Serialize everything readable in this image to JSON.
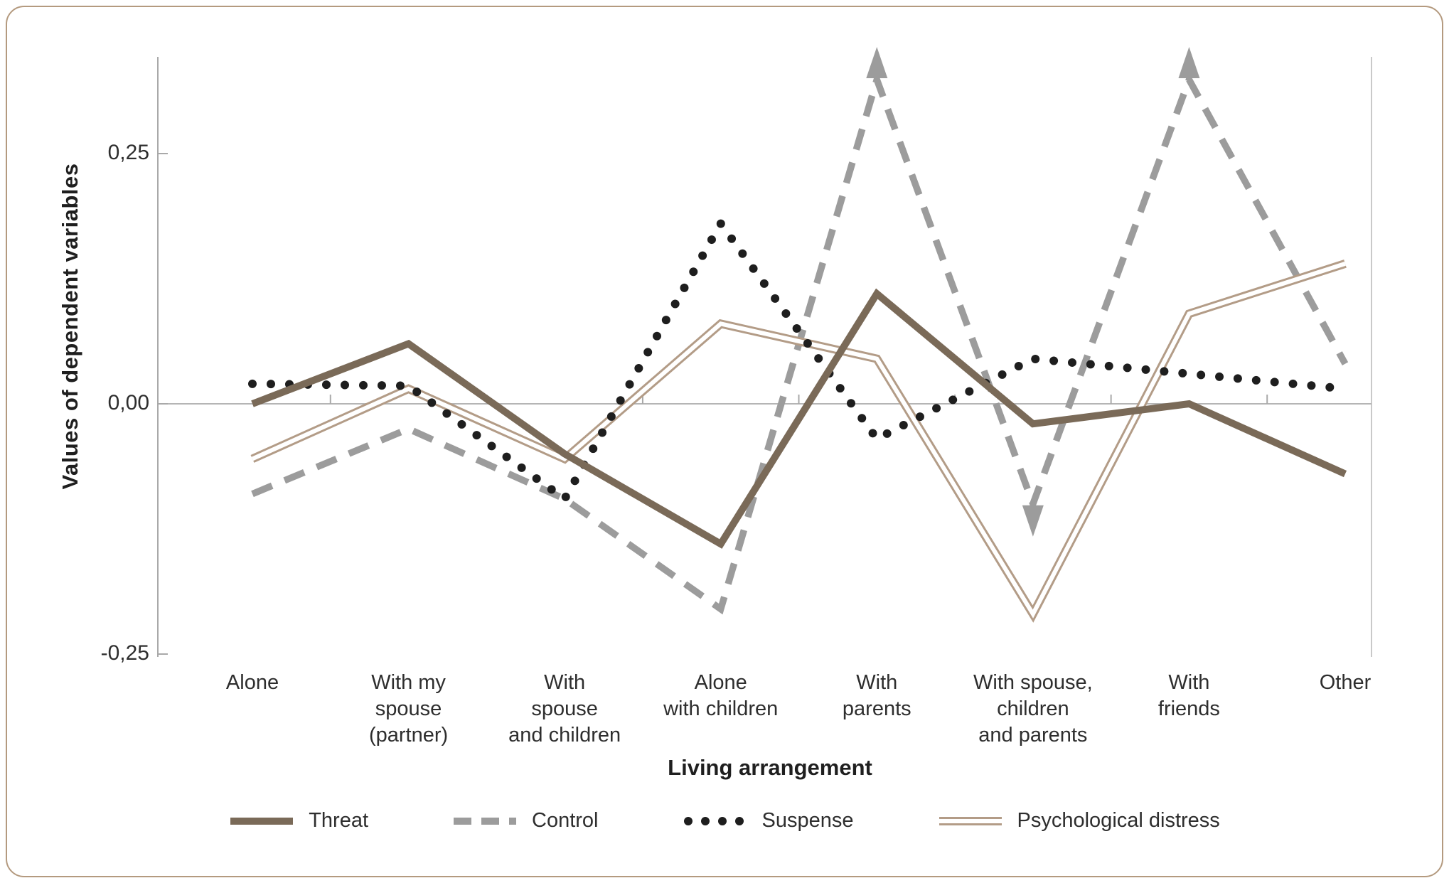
{
  "figure": {
    "border_color": "#b49a7f",
    "background": "#ffffff"
  },
  "axis_colors": {
    "axis_line": "#a9a9a9",
    "zero_line": "#b5b5b5",
    "tick": "#a9a9a9",
    "right_frame": "#c9c9c9"
  },
  "chart_data": {
    "type": "line",
    "x_label": "Living arrangement",
    "y_label": "Values of dependent variables",
    "y_ticks": [
      {
        "label": "0,25",
        "value": 0.25
      },
      {
        "label": "0,00",
        "value": 0.0
      },
      {
        "label": "-0,25",
        "value": -0.25
      }
    ],
    "ylim": [
      -0.25,
      0.35
    ],
    "grid": "zero-line-only",
    "legend_position": "bottom",
    "categories": [
      "Alone",
      "With my\nspouse\n(partner)",
      "With\nspouse\nand children",
      "Alone\nwith children",
      "With\nparents",
      "With spouse,\nchildren\nand parents",
      "With\nfriends",
      "Other"
    ],
    "series": [
      {
        "name": "Control",
        "style": "dashed",
        "color": "#9c9c9c",
        "values": [
          -0.09,
          -0.025,
          -0.095,
          -0.205,
          0.355,
          -0.1,
          0.355,
          0.04
        ]
      },
      {
        "name": "Psychological distress",
        "style": "double",
        "color": "#b39c87",
        "values": [
          -0.055,
          0.015,
          -0.055,
          0.08,
          0.045,
          -0.21,
          0.09,
          0.14
        ]
      },
      {
        "name": "Suspense",
        "style": "dotted",
        "color": "#1e1e1e",
        "values": [
          0.02,
          0.018,
          -0.095,
          0.18,
          -0.035,
          0.045,
          0.03,
          0.015
        ]
      },
      {
        "name": "Threat",
        "style": "solid",
        "color": "#7a6a58",
        "values": [
          0.0,
          0.06,
          -0.05,
          -0.14,
          0.11,
          -0.02,
          0.0,
          -0.07
        ]
      }
    ],
    "offscale_arrows": [
      {
        "series": "Control",
        "category_index": 4,
        "direction": "up"
      },
      {
        "series": "Control",
        "category_index": 5,
        "direction": "down"
      },
      {
        "series": "Control",
        "category_index": 6,
        "direction": "up"
      }
    ],
    "legend_order": [
      "Threat",
      "Control",
      "Suspense",
      "Psychological distress"
    ]
  }
}
